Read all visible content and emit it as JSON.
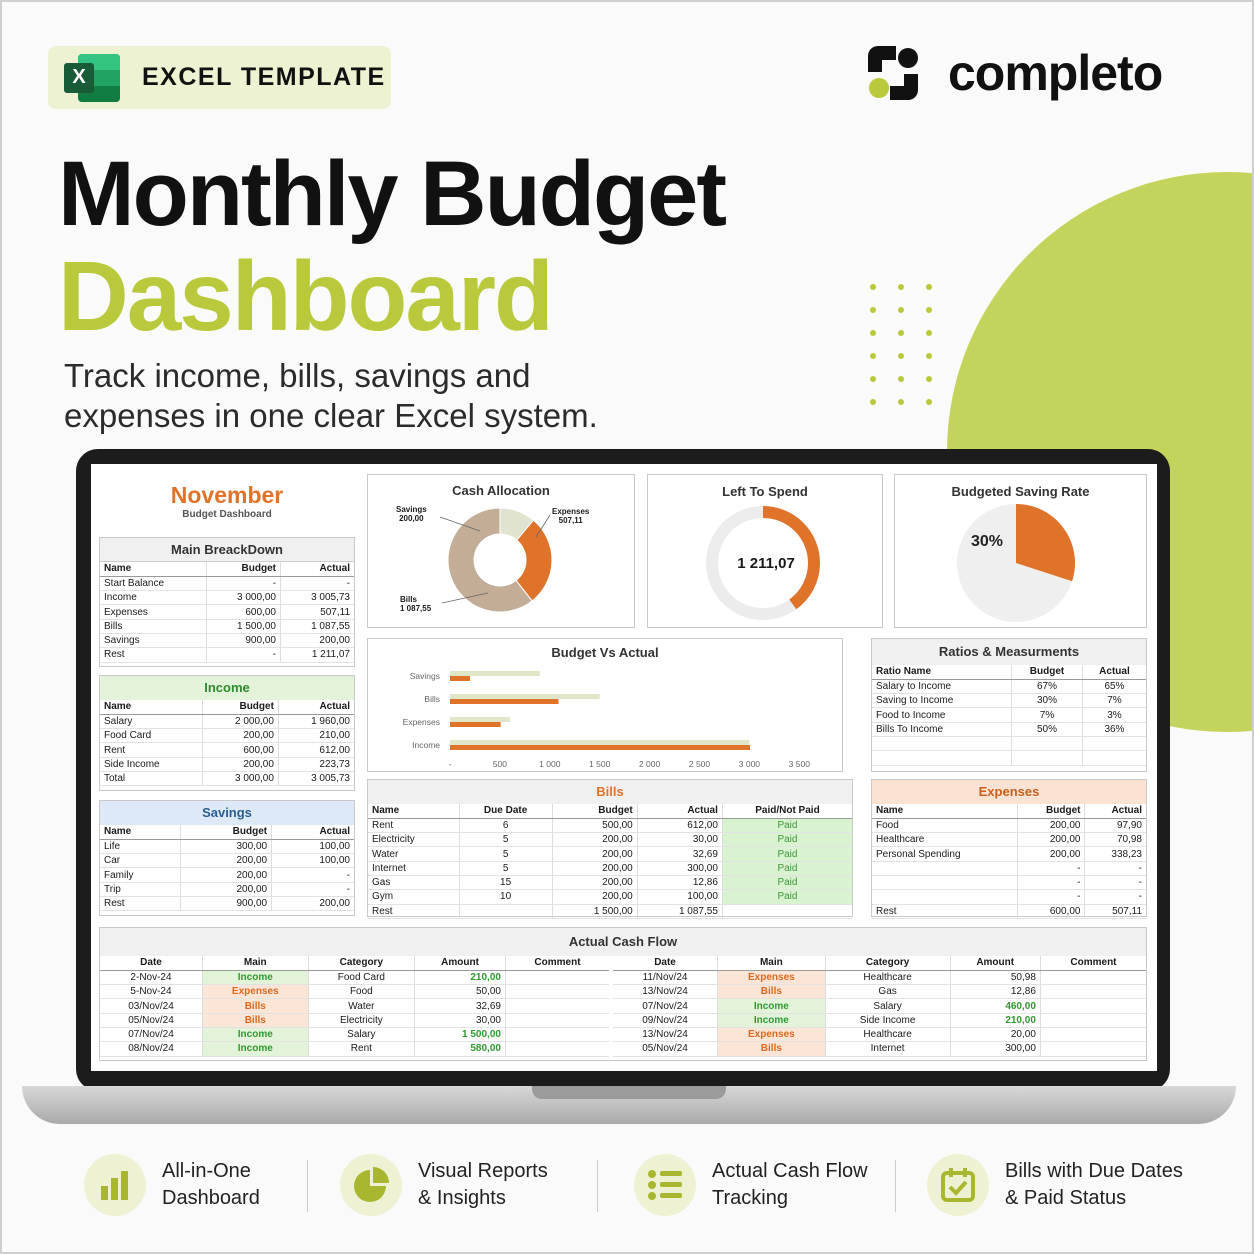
{
  "badge": {
    "icon": "excel-icon",
    "icon_letter": "X",
    "text": "EXCEL TEMPLATE"
  },
  "brand": {
    "name": "completo"
  },
  "hero": {
    "line1": "Monthly Budget",
    "line2": "Dashboard",
    "sub1": "Track income, bills, savings and",
    "sub2": "expenses in one clear Excel system."
  },
  "colors": {
    "accent": "#b9c93b",
    "orange": "#e0732a",
    "tan": "#c3ad97",
    "green_paid": "#3b9a3b"
  },
  "dashboard": {
    "month": "November",
    "subtitle": "Budget Dashboard",
    "breakdown": {
      "title": "Main BreackDown",
      "headers": [
        "Name",
        "Budget",
        "Actual"
      ],
      "rows": [
        [
          "Start Balance",
          "-",
          "-"
        ],
        [
          "Income",
          "3 000,00",
          "3 005,73"
        ],
        [
          "Expenses",
          "600,00",
          "507,11"
        ],
        [
          "Bills",
          "1 500,00",
          "1 087,55"
        ],
        [
          "Savings",
          "900,00",
          "200,00"
        ],
        [
          "Rest",
          "-",
          "1 211,07"
        ]
      ]
    },
    "income": {
      "title": "Income",
      "headers": [
        "Name",
        "Budget",
        "Actual"
      ],
      "rows": [
        [
          "Salary",
          "2 000,00",
          "1 960,00"
        ],
        [
          "Food Card",
          "200,00",
          "210,00"
        ],
        [
          "Rent",
          "600,00",
          "612,00"
        ],
        [
          "Side Income",
          "200,00",
          "223,73"
        ],
        [
          "Total",
          "3 000,00",
          "3 005,73"
        ]
      ]
    },
    "savings": {
      "title": "Savings",
      "headers": [
        "Name",
        "Budget",
        "Actual"
      ],
      "rows": [
        [
          "Life",
          "300,00",
          "100,00"
        ],
        [
          "Car",
          "200,00",
          "100,00"
        ],
        [
          "Family",
          "200,00",
          "-"
        ],
        [
          "Trip",
          "200,00",
          "-"
        ],
        [
          "Rest",
          "900,00",
          "200,00"
        ]
      ]
    },
    "cash_allocation": {
      "title": "Cash Allocation",
      "labels": {
        "savings_name": "Savings",
        "savings_value": "200,00",
        "expenses_name": "Expenses",
        "expenses_value": "507,11",
        "bills_name": "Bills",
        "bills_value": "1 087,55"
      }
    },
    "left_to_spend": {
      "title": "Left To Spend",
      "value": "1 211,07"
    },
    "saving_rate": {
      "title": "Budgeted Saving Rate",
      "value": "30%"
    },
    "budget_vs_actual": {
      "title": "Budget Vs Actual"
    },
    "ratios": {
      "title": "Ratios & Measurments",
      "headers": [
        "Ratio Name",
        "Budget",
        "Actual"
      ],
      "rows": [
        [
          "Salary to Income",
          "67%",
          "65%"
        ],
        [
          "Saving to Income",
          "30%",
          "7%"
        ],
        [
          "Food to Income",
          "7%",
          "3%"
        ],
        [
          "Bills To Income",
          "50%",
          "36%"
        ],
        [
          "",
          "",
          ""
        ],
        [
          "",
          "",
          ""
        ]
      ]
    },
    "bills": {
      "title": "Bills",
      "headers": [
        "Name",
        "Due Date",
        "Budget",
        "Actual",
        "Paid/Not Paid"
      ],
      "rows": [
        [
          "Rent",
          "6",
          "500,00",
          "612,00",
          "Paid"
        ],
        [
          "Electricity",
          "5",
          "200,00",
          "30,00",
          "Paid"
        ],
        [
          "Water",
          "5",
          "200,00",
          "32,69",
          "Paid"
        ],
        [
          "Internet",
          "5",
          "200,00",
          "300,00",
          "Paid"
        ],
        [
          "Gas",
          "15",
          "200,00",
          "12,86",
          "Paid"
        ],
        [
          "Gym",
          "10",
          "200,00",
          "100,00",
          "Paid"
        ],
        [
          "Rest",
          "",
          "1 500,00",
          "1 087,55",
          ""
        ]
      ]
    },
    "expenses": {
      "title": "Expenses",
      "headers": [
        "Name",
        "Budget",
        "Actual"
      ],
      "rows": [
        [
          "Food",
          "200,00",
          "97,90"
        ],
        [
          "Healthcare",
          "200,00",
          "70,98"
        ],
        [
          "Personal Spending",
          "200,00",
          "338,23"
        ],
        [
          "",
          "-",
          "-"
        ],
        [
          "",
          "-",
          "-"
        ],
        [
          "",
          "-",
          "-"
        ],
        [
          "Rest",
          "600,00",
          "507,11"
        ]
      ]
    },
    "cash_flow": {
      "title": "Actual Cash Flow",
      "headers": [
        "Date",
        "Main",
        "Category",
        "Amount",
        "Comment"
      ],
      "left": [
        [
          "2-Nov-24",
          "Income",
          "Food Card",
          "210,00",
          ""
        ],
        [
          "5-Nov-24",
          "Expenses",
          "Food",
          "50,00",
          ""
        ],
        [
          "03/Nov/24",
          "Bills",
          "Water",
          "32,69",
          ""
        ],
        [
          "05/Nov/24",
          "Bills",
          "Electricity",
          "30,00",
          ""
        ],
        [
          "07/Nov/24",
          "Income",
          "Salary",
          "1 500,00",
          ""
        ],
        [
          "08/Nov/24",
          "Income",
          "Rent",
          "580,00",
          ""
        ]
      ],
      "right": [
        [
          "11/Nov/24",
          "Expenses",
          "Healthcare",
          "50,98",
          ""
        ],
        [
          "13/Nov/24",
          "Bills",
          "Gas",
          "12,86",
          ""
        ],
        [
          "07/Nov/24",
          "Income",
          "Salary",
          "460,00",
          ""
        ],
        [
          "09/Nov/24",
          "Income",
          "Side Income",
          "210,00",
          ""
        ],
        [
          "13/Nov/24",
          "Expenses",
          "Healthcare",
          "20,00",
          ""
        ],
        [
          "05/Nov/24",
          "Bills",
          "Internet",
          "300,00",
          ""
        ]
      ]
    }
  },
  "chart_data": [
    {
      "type": "pie",
      "title": "Cash Allocation",
      "categories": [
        "Savings",
        "Expenses",
        "Bills"
      ],
      "values": [
        200.0,
        507.11,
        1087.55
      ],
      "colors": [
        "#dfe3cf",
        "#e0732a",
        "#c3ad97"
      ]
    },
    {
      "type": "bar",
      "title": "Budget Vs Actual",
      "orientation": "horizontal",
      "categories": [
        "Savings",
        "Bills",
        "Expenses",
        "Income"
      ],
      "series": [
        {
          "values": [
            900,
            1500,
            600,
            3000
          ],
          "color": "#e2e6c8"
        },
        {
          "values": [
            200,
            1087.55,
            507.11,
            3005.73
          ],
          "color": "#e0732a"
        }
      ],
      "xticks": [
        "500",
        "1 000",
        "1 500",
        "2 000",
        "2 500",
        "3 000",
        "3 500"
      ],
      "xticks_first": "-",
      "xlim": [
        0,
        3500
      ]
    },
    {
      "type": "pie",
      "title": "Budgeted Saving Rate",
      "categories": [
        "Saving",
        "Rest"
      ],
      "values": [
        30,
        70
      ],
      "label": "30%"
    },
    {
      "type": "pie",
      "title": "Left To Spend",
      "values": [
        1211.07
      ],
      "fraction": 0.4
    }
  ],
  "features": [
    {
      "icon": "bar-chart-icon",
      "line1": "All-in-One",
      "line2": "Dashboard"
    },
    {
      "icon": "pie-chart-icon",
      "line1": "Visual Reports",
      "line2": "& Insights"
    },
    {
      "icon": "list-icon",
      "line1": "Actual Cash Flow",
      "line2": "Tracking"
    },
    {
      "icon": "calendar-check-icon",
      "line1": "Bills with Due Dates",
      "line2": "& Paid Status"
    }
  ]
}
